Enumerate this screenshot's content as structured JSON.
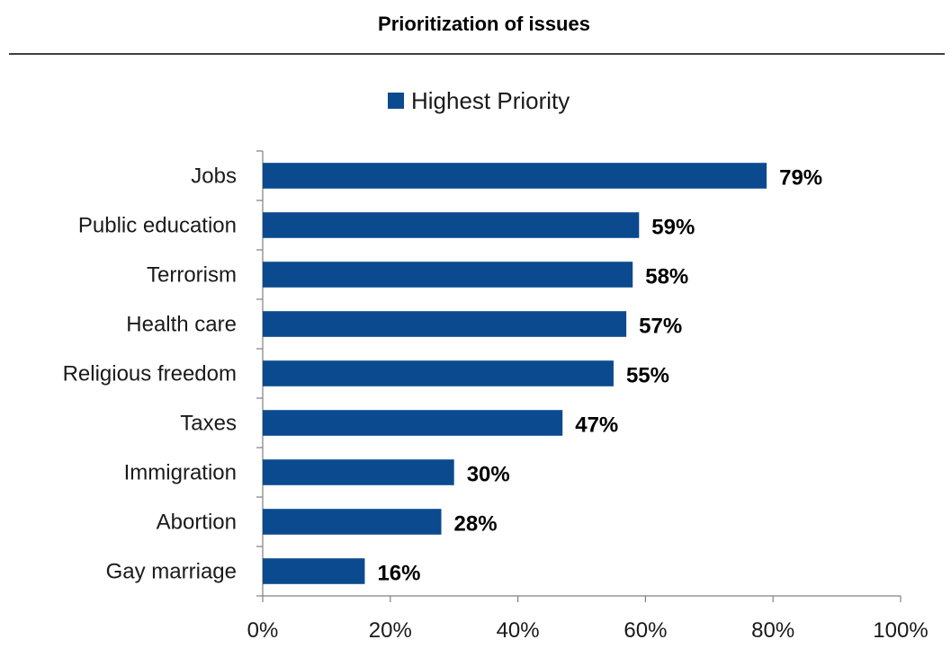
{
  "chart_data": {
    "type": "bar",
    "orientation": "horizontal",
    "title": "Prioritization of issues",
    "categories": [
      "Jobs",
      "Public education",
      "Terrorism",
      "Health care",
      "Religious freedom",
      "Taxes",
      "Immigration",
      "Abortion",
      "Gay marriage"
    ],
    "series": [
      {
        "name": "Highest Priority",
        "color": "#0b4a8f",
        "values": [
          79,
          59,
          58,
          57,
          55,
          47,
          30,
          28,
          16
        ],
        "labels": [
          "79%",
          "59%",
          "58%",
          "57%",
          "55%",
          "47%",
          "30%",
          "28%",
          "16%"
        ]
      }
    ],
    "xlim": [
      0,
      100
    ],
    "xticks": [
      0,
      20,
      40,
      60,
      80,
      100
    ],
    "xtick_labels": [
      "0%",
      "20%",
      "40%",
      "60%",
      "80%",
      "100%"
    ],
    "xlabel": "",
    "ylabel": "",
    "grid": false,
    "legend": {
      "position": "top",
      "entries": [
        "Highest Priority"
      ]
    }
  }
}
